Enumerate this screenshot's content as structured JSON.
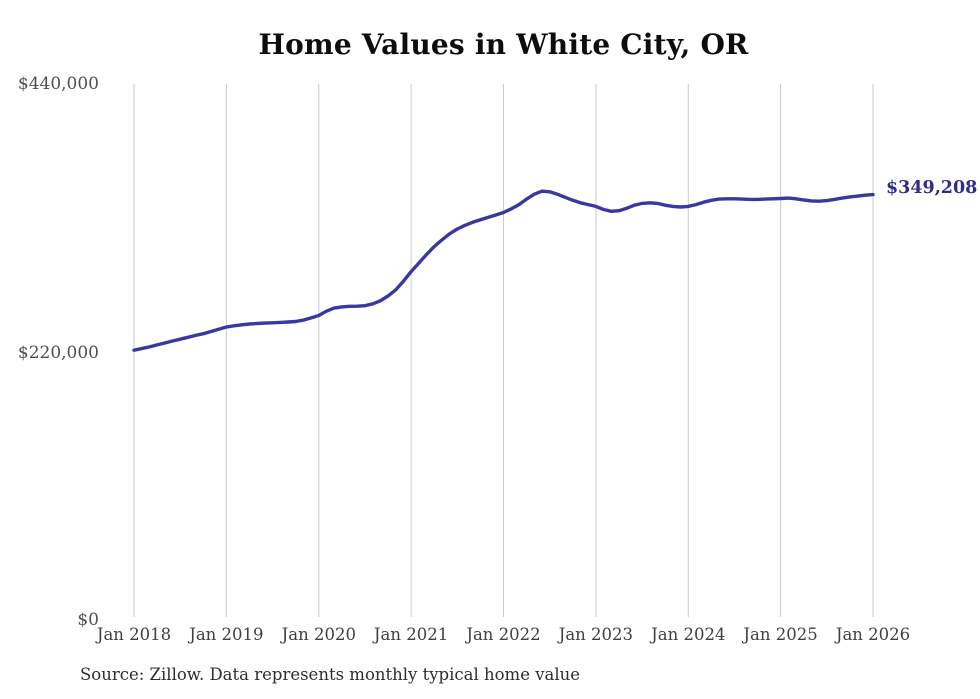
{
  "page": {
    "title": "Home Values in White City, OR",
    "source_note": "Source: Zillow. Data represents monthly typical home value",
    "final_value_label": "$349,208"
  },
  "chart_data": {
    "type": "line",
    "title": "Home Values in White City, OR",
    "series_name": "Monthly typical home value",
    "unit": "USD",
    "ylim": [
      0,
      440000
    ],
    "y_ticks": [
      0,
      220000,
      440000
    ],
    "y_tick_labels": [
      "$0",
      "$220,000",
      "$440,000"
    ],
    "x_tick_labels": [
      "Jan 2018",
      "Jan 2019",
      "Jan 2020",
      "Jan 2021",
      "Jan 2022",
      "Jan 2023",
      "Jan 2024",
      "Jan 2025",
      "Jan 2026"
    ],
    "grid": "vertical-only",
    "legend": "none",
    "line_color": "#3a37a0",
    "gridline_color": "#cbcbcb",
    "final_value": 349208,
    "months": [
      "2018-01",
      "2018-02",
      "2018-03",
      "2018-04",
      "2018-05",
      "2018-06",
      "2018-07",
      "2018-08",
      "2018-09",
      "2018-10",
      "2018-11",
      "2018-12",
      "2019-01",
      "2019-02",
      "2019-03",
      "2019-04",
      "2019-05",
      "2019-06",
      "2019-07",
      "2019-08",
      "2019-09",
      "2019-10",
      "2019-11",
      "2019-12",
      "2020-01",
      "2020-02",
      "2020-03",
      "2020-04",
      "2020-05",
      "2020-06",
      "2020-07",
      "2020-08",
      "2020-09",
      "2020-10",
      "2020-11",
      "2020-12",
      "2021-01",
      "2021-02",
      "2021-03",
      "2021-04",
      "2021-05",
      "2021-06",
      "2021-07",
      "2021-08",
      "2021-09",
      "2021-10",
      "2021-11",
      "2021-12",
      "2022-01",
      "2022-02",
      "2022-03",
      "2022-04",
      "2022-05",
      "2022-06",
      "2022-07",
      "2022-08",
      "2022-09",
      "2022-10",
      "2022-11",
      "2022-12",
      "2023-01",
      "2023-02",
      "2023-03",
      "2023-04",
      "2023-05",
      "2023-06",
      "2023-07",
      "2023-08",
      "2023-09",
      "2023-10",
      "2023-11",
      "2023-12",
      "2024-01",
      "2024-02",
      "2024-03",
      "2024-04",
      "2024-05",
      "2024-06",
      "2024-07",
      "2024-08",
      "2024-09",
      "2024-10",
      "2024-11",
      "2024-12",
      "2025-01",
      "2025-02",
      "2025-03",
      "2025-04",
      "2025-05",
      "2025-06",
      "2025-07",
      "2025-08",
      "2025-09",
      "2025-10",
      "2025-11",
      "2025-12",
      "2026-01"
    ],
    "values": [
      221500,
      222800,
      224200,
      225800,
      227400,
      229000,
      230500,
      232100,
      233600,
      235000,
      236800,
      238600,
      240500,
      241500,
      242300,
      243000,
      243400,
      243700,
      244000,
      244300,
      244600,
      245000,
      246200,
      248000,
      250000,
      253500,
      256000,
      257000,
      257500,
      257600,
      258000,
      259500,
      262000,
      266000,
      271000,
      278000,
      286000,
      293000,
      300000,
      306500,
      312000,
      317000,
      321000,
      324000,
      326500,
      328500,
      330500,
      332500,
      334500,
      337500,
      341000,
      345500,
      349500,
      352000,
      351500,
      349500,
      347000,
      344500,
      342500,
      341000,
      339500,
      337000,
      335500,
      336000,
      338000,
      340500,
      342000,
      342500,
      342000,
      340500,
      339500,
      339000,
      339500,
      341000,
      343000,
      344500,
      345500,
      345800,
      345800,
      345500,
      345300,
      345300,
      345500,
      345800,
      346000,
      346300,
      345800,
      344800,
      344000,
      343800,
      344300,
      345300,
      346300,
      347300,
      348000,
      348700,
      349208
    ]
  }
}
